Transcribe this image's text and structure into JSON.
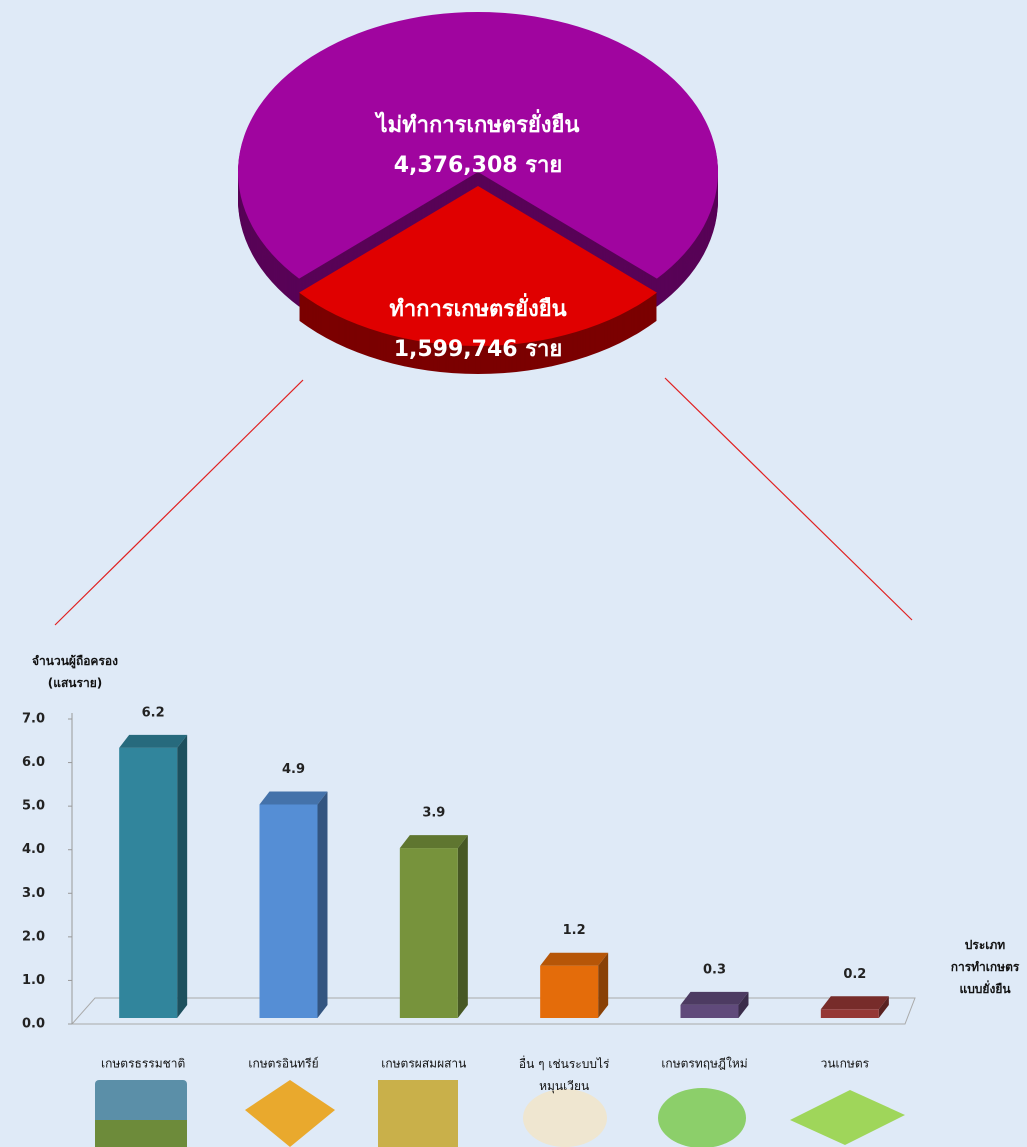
{
  "chart_data": [
    {
      "type": "pie",
      "labels": [
        "ไม่ทำการเกษตรยั่งยืน",
        "ทำการเกษตรยั่งยืน"
      ],
      "values": [
        4376308,
        1599746
      ],
      "value_labels": [
        "4,376,308 ราย",
        "1,599,746 ราย"
      ],
      "colors": [
        "#a0059f",
        "#e00000"
      ]
    },
    {
      "type": "bar",
      "y_label": "จำนวนผู้ถือครอง\n(แสนราย)",
      "x_label": "ประเภท\nการทำเกษตร\nแบบยั่งยืน",
      "categories": [
        "เกษตรธรรมชาติ",
        "เกษตรอินทรีย์",
        "เกษตรผสมผสาน",
        "อื่น ๆ เช่นระบบไร่\nหมุนเวียน",
        "เกษตรทฤษฎีใหม่",
        "วนเกษตร"
      ],
      "values": [
        6.2,
        4.9,
        3.9,
        1.2,
        0.3,
        0.2
      ],
      "colors": [
        "#31859c",
        "#558ed5",
        "#77933c",
        "#e46c0a",
        "#604a7b",
        "#953735"
      ],
      "ylim": [
        0,
        7
      ],
      "yticks": [
        {
          "value": 0,
          "label": "0.0"
        },
        {
          "value": 1,
          "label": "1.0"
        },
        {
          "value": 2,
          "label": "2.0"
        },
        {
          "value": 3,
          "label": "3.0"
        },
        {
          "value": 4,
          "label": "4.0"
        },
        {
          "value": 5,
          "label": "5.0"
        },
        {
          "value": 6,
          "label": "6.0"
        },
        {
          "value": 7,
          "label": "7.0"
        }
      ]
    }
  ]
}
